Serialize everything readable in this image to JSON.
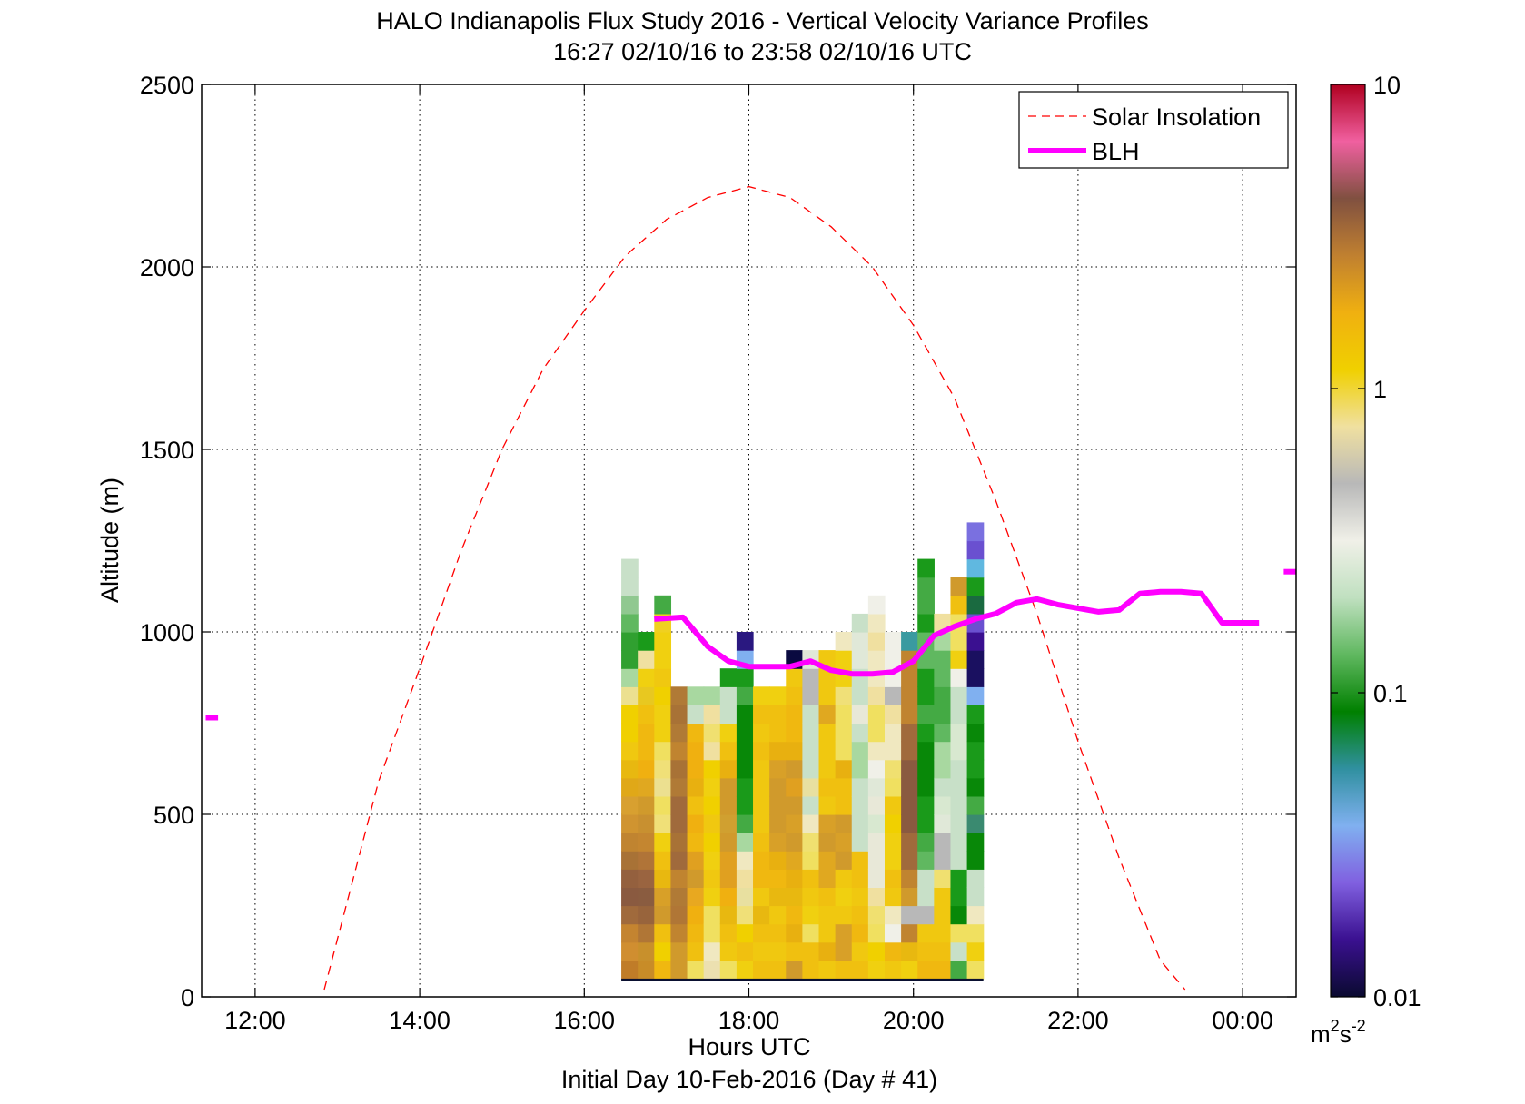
{
  "chart_data": {
    "type": "heatmap",
    "title": "HALO Indianapolis Flux Study 2016 - Vertical Velocity Variance Profiles",
    "subtitle": "16:27 02/10/16 to 23:58 02/10/16  UTC",
    "xlabel": "Hours UTC",
    "xlabel2": "Initial Day 10-Feb-2016 (Day # 41)",
    "ylabel": "Altitude (m)",
    "x_ticks": [
      "12:00",
      "14:00",
      "16:00",
      "18:00",
      "20:00",
      "22:00",
      "00:00"
    ],
    "x_tick_hours": [
      12,
      14,
      16,
      18,
      20,
      22,
      24
    ],
    "xlim_hours": [
      11.35,
      24.65
    ],
    "y_ticks": [
      0,
      500,
      1000,
      1500,
      2000,
      2500
    ],
    "ylim": [
      0,
      2500
    ],
    "grid": true,
    "legend_position": "top-right",
    "legend": [
      {
        "label": "Solar Insolation",
        "style": "dashed",
        "color": "#ff0000"
      },
      {
        "label": "BLH",
        "style": "solid",
        "color": "#ff00ff"
      }
    ],
    "colorbar": {
      "scale": "log",
      "ticks": [
        "10",
        "1",
        "0.1",
        "0.01"
      ],
      "tick_values": [
        10,
        1,
        0.1,
        0.01
      ],
      "unit_label": "m",
      "unit_exp1": "2",
      "unit_mid": "s",
      "unit_exp2": "-2",
      "colormap_stops": [
        "#0a0a30",
        "#3a1090",
        "#8060e0",
        "#80b0f0",
        "#3090a0",
        "#008000",
        "#60b860",
        "#c0e0c0",
        "#f0f0e8",
        "#b8b8b8",
        "#f0e0a0",
        "#f0d000",
        "#f0b010",
        "#c08030",
        "#805040",
        "#f060a0",
        "#b00020"
      ]
    },
    "heatmap": {
      "start_hour": 16.45,
      "column_width_hours": 0.2,
      "base_altitude_m": 50,
      "bin_height_m": 50,
      "bottom_band_altitude_m": [
        0,
        50
      ],
      "bottom_band_color": "#0a1030",
      "columns": [
        [
          "#c07c28",
          "#d08e30",
          "#c48430",
          "#a06a3c",
          "#8a5a40",
          "#94603e",
          "#a87236",
          "#c08430",
          "#d09430",
          "#d8a030",
          "#e0a818",
          "#e8b810",
          "#f0c810",
          "#f0d000",
          "#f0d000",
          "#ece090",
          "#a8d8a0",
          "#30a030",
          "#30a030",
          "#60b860",
          "#90c890",
          "#c8e0c8",
          "#c8e0c8"
        ],
        [
          "#c88c28",
          "#c8902c",
          "#b07636",
          "#98643c",
          "#8a5c40",
          "#9a6440",
          "#b07438",
          "#c48630",
          "#c89030",
          "#d09a2c",
          "#e0a820",
          "#f0b010",
          "#f0b810",
          "#f0b810",
          "#f0c010",
          "#e8c820",
          "#f0d010",
          "#f0e0a0",
          "#1a9a1a"
        ],
        [
          "#f0b810",
          "#f0d000",
          "#f0c010",
          "#d09a2c",
          "#d8a028",
          "#e8b810",
          "#f0c010",
          "#f0d010",
          "#f0e078",
          "#f0e060",
          "#ece090",
          "#f0e078",
          "#f0e060",
          "#f0d010",
          "#f0d010",
          "#f0d000",
          "#f0c810",
          "#f0d010",
          "#f0d010",
          "#f0d020",
          "#44aa44"
        ],
        [
          "#d09a2c",
          "#d09a2c",
          "#c08430",
          "#b07636",
          "#b07a36",
          "#c08430",
          "#a06a3c",
          "#a87236",
          "#a06a3c",
          "#a06a3c",
          "#b07a36",
          "#a87236",
          "#c08430",
          "#b07a36",
          "#a87236",
          "#b07a36"
        ],
        [
          "#f0e060",
          "#f0c010",
          "#f0b810",
          "#f0b010",
          "#e8a820",
          "#d09a2c",
          "#e0a020",
          "#f0b810",
          "#f0b010",
          "#f0c010",
          "#e8b010",
          "#f0b010",
          "#f0b010",
          "#f0b810",
          "#c8e0c8",
          "#a8d8a0"
        ],
        [
          "#ece0b0",
          "#f0e8c0",
          "#f0e060",
          "#f0e060",
          "#f0d010",
          "#f0c810",
          "#f0d010",
          "#f0d000",
          "#f0c810",
          "#f0d000",
          "#f0d010",
          "#f0d000",
          "#f0e0a0",
          "#f0e070",
          "#f0e0a0",
          "#a8d8a0"
        ],
        [
          "#f0e060",
          "#f0c810",
          "#f0c010",
          "#e8b810",
          "#f0b010",
          "#e0a020",
          "#e0a020",
          "#d09a2c",
          "#d0a030",
          "#d09a2c",
          "#d09a2c",
          "#e8b010",
          "#f0c010",
          "#f0d010",
          "#c8e0c8",
          "#c8e0c8",
          "#1a9a1a"
        ],
        [
          "#f0d010",
          "#f0c010",
          "#f0d000",
          "#f0e078",
          "#e8e0a0",
          "#f0e0a0",
          "#f0e8c0",
          "#a8d8a0",
          "#44aa44",
          "#1a9a1a",
          "#1a9a1a",
          "#088808",
          "#088808",
          "#088808",
          "#088808",
          "#44aa44",
          "#1a9a1a",
          "#80b0f0",
          "#2a1880"
        ],
        [
          "#f0c010",
          "#f0c810",
          "#f0c010",
          "#e8b810",
          "#f0c810",
          "#f0b810",
          "#f0b810",
          "#f0c010",
          "#f0c810",
          "#f0c810",
          "#f0c810",
          "#f0c810",
          "#f0c010",
          "#f0c810",
          "#f0c010",
          "#f0d010"
        ],
        [
          "#f0c010",
          "#f0c810",
          "#f0c010",
          "#f0c810",
          "#e8b810",
          "#f0b810",
          "#e8b010",
          "#d8a028",
          "#d09a2c",
          "#d09a2c",
          "#d09a2c",
          "#d8a028",
          "#e8b010",
          "#f0c010",
          "#f0c010",
          "#f0d010"
        ],
        [
          "#d09a2c",
          "#f0c010",
          "#e8b010",
          "#f0b810",
          "#e8b810",
          "#e8b010",
          "#e0a820",
          "#d09a2c",
          "#d8a028",
          "#d09a2c",
          "#e0a020",
          "#d09a2c",
          "#e8b010",
          "#f0b810",
          "#f0b810",
          "#f0c010",
          "#f0c810",
          "#0a0a40"
        ],
        [
          "#f0c010",
          "#f0c010",
          "#f0e060",
          "#f0d010",
          "#f0c810",
          "#f0c010",
          "#f0e060",
          "#f0e070",
          "#f0e8c0",
          "#c8e0c8",
          "#e8e0a0",
          "#c8e0c8",
          "#c8e0c8",
          "#c8e0c8",
          "#c8e0c8",
          "#b8b8b8",
          "#b8b8b8",
          "#e0e8d8"
        ],
        [
          "#f0c810",
          "#e8b010",
          "#f0c810",
          "#f0c810",
          "#f0c010",
          "#e0a820",
          "#e0a820",
          "#d09a2c",
          "#d8a028",
          "#f0c810",
          "#f0c010",
          "#f0c810",
          "#f0c810",
          "#f0c810",
          "#e0a820",
          "#f0c810",
          "#f0c810",
          "#f0c810"
        ],
        [
          "#f0c010",
          "#d8a028",
          "#d8a028",
          "#f0c810",
          "#f0d010",
          "#f0c810",
          "#d09a2c",
          "#d8a028",
          "#d09a2c",
          "#f0c010",
          "#f0c010",
          "#e8b010",
          "#f0e060",
          "#f0e060",
          "#f0e060",
          "#f0e078",
          "#f0d010",
          "#f0d010",
          "#f0e8c0"
        ],
        [
          "#f0c010",
          "#f0c810",
          "#f0b810",
          "#f0c010",
          "#f0c810",
          "#f0c010",
          "#f0c010",
          "#c8e0c8",
          "#c8e0c8",
          "#c8e0c8",
          "#c8e0c8",
          "#a8d8a0",
          "#a8d8a0",
          "#c8e0c8",
          "#e8e8d8",
          "#c8e0c8",
          "#c8e0c8",
          "#e0e8d8",
          "#e0e8d8",
          "#c8e0c8"
        ],
        [
          "#f0d010",
          "#f0d000",
          "#f0e060",
          "#f0e070",
          "#f0e0a0",
          "#e8e8d8",
          "#e8e8d8",
          "#e8e8d8",
          "#d8e8d0",
          "#e8e8d8",
          "#e0e8d8",
          "#f0f0e8",
          "#f0e8c0",
          "#f0e060",
          "#f0e060",
          "#f0e0a0",
          "#f0e8c0",
          "#f0e8c0",
          "#f0e0a0",
          "#f0e8c0",
          "#f0f0e8"
        ],
        [
          "#f0c810",
          "#f0b810",
          "#f0f0e8",
          "#f0e8c0",
          "#f0c810",
          "#f0c010",
          "#f0d010",
          "#f0d010",
          "#f0d000",
          "#f0c810",
          "#f0e060",
          "#f0e070",
          "#f0e8c0",
          "#f0e8c0",
          "#f0e0a0",
          "#b8b8b8",
          "#f0f0e8",
          "#f0f0e8",
          "#f0f0e8"
        ],
        [
          "#f0d010",
          "#e8b810",
          "#c08430",
          "#b8b8b8",
          "#d09a2c",
          "#c08430",
          "#a06a3c",
          "#a06a3c",
          "#8a5a40",
          "#8a5a40",
          "#8a5a40",
          "#8a5a40",
          "#a06a3c",
          "#a06a3c",
          "#c08430",
          "#c08430",
          "#c08430",
          "#c08430",
          "#3a9aa0"
        ],
        [
          "#f0b810",
          "#f0c010",
          "#f0c810",
          "#b8b8b8",
          "#c8e0c8",
          "#c8e0c8",
          "#60b860",
          "#44aa44",
          "#1a9a1a",
          "#1a9a1a",
          "#088808",
          "#088808",
          "#088808",
          "#1a9a1a",
          "#44aa44",
          "#1a9a1a",
          "#1a9a1a",
          "#60b860",
          "#60b860",
          "#1a9a1a",
          "#44aa44",
          "#44aa44",
          "#1a9a1a"
        ],
        [
          "#f0b810",
          "#f0c010",
          "#f0c810",
          "#f0c810",
          "#f0c810",
          "#f0e070",
          "#b8b8b8",
          "#b8b8b8",
          "#e0e8d8",
          "#d8e8d0",
          "#c8e0c8",
          "#a8d8a0",
          "#a8d8a0",
          "#60b860",
          "#44aa44",
          "#44aa44",
          "#60b860",
          "#60b860",
          "#a8d8a0",
          "#f0e0a0"
        ],
        [
          "#44aa44",
          "#c8e0c8",
          "#f0e060",
          "#088808",
          "#1a9a1a",
          "#1a9a1a",
          "#c8e0c8",
          "#c8e0c8",
          "#c8e0c8",
          "#c8e0c8",
          "#c8e0c8",
          "#c8e0c8",
          "#d8e8d0",
          "#d8e8d0",
          "#c8e0c8",
          "#c8e0c8",
          "#f0f0e8",
          "#f0d010",
          "#f0e060",
          "#f0e060",
          "#f0c010",
          "#d09a2c"
        ],
        [
          "#f0e060",
          "#f0d010",
          "#f0e060",
          "#f0e8c0",
          "#c8e0c8",
          "#c8e0c8",
          "#088808",
          "#088808",
          "#3a8a70",
          "#44aa44",
          "#088808",
          "#1a9a1a",
          "#1a9a1a",
          "#088808",
          "#1a9a1a",
          "#80b0f0",
          "#1a1060",
          "#1a1060",
          "#3a1090",
          "#6a50d0",
          "#1a6a40",
          "#1a9a1a",
          "#60b8e0",
          "#6a50d0",
          "#7a70e0"
        ]
      ]
    },
    "solar_insolation": {
      "x_hours": [
        12.84,
        13.5,
        14.0,
        14.5,
        15.0,
        15.5,
        16.0,
        16.5,
        17.0,
        17.5,
        18.0,
        18.5,
        19.0,
        19.5,
        20.0,
        20.5,
        21.0,
        21.5,
        22.0,
        22.5,
        23.0,
        23.3
      ],
      "y_m": [
        20,
        590,
        900,
        1220,
        1500,
        1720,
        1880,
        2030,
        2130,
        2190,
        2220,
        2190,
        2110,
        2000,
        1840,
        1640,
        1360,
        1050,
        700,
        380,
        100,
        20
      ]
    },
    "blh": {
      "x_hours": [
        16.85,
        17.2,
        17.5,
        17.75,
        18.0,
        18.25,
        18.5,
        18.75,
        19.0,
        19.25,
        19.5,
        19.75,
        20.0,
        20.25,
        20.5,
        20.75,
        21.0,
        21.25,
        21.5,
        21.75,
        22.0,
        22.25,
        22.5,
        22.75,
        23.0,
        23.25,
        23.5,
        23.75,
        24.0,
        24.2
      ],
      "y_m": [
        1035,
        1040,
        960,
        920,
        905,
        905,
        905,
        920,
        895,
        885,
        885,
        890,
        920,
        990,
        1015,
        1035,
        1050,
        1080,
        1090,
        1075,
        1065,
        1055,
        1060,
        1105,
        1110,
        1110,
        1105,
        1025,
        1025,
        1025
      ],
      "fragments": [
        {
          "x_hours": [
            11.4,
            11.55
          ],
          "y_m": [
            765,
            765
          ]
        },
        {
          "x_hours": [
            24.5,
            24.65
          ],
          "y_m": [
            1165,
            1165
          ]
        }
      ]
    }
  }
}
